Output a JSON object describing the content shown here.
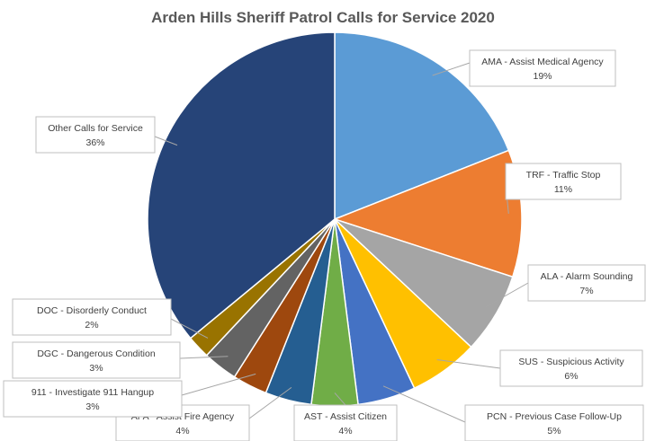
{
  "chart_data": {
    "type": "pie",
    "title": "Arden Hills Sheriff Patrol Calls for Service 2020",
    "slices": [
      {
        "label": "AMA - Assist Medical Agency",
        "value": 19,
        "pct_label": "19%",
        "color": "#5b9bd5"
      },
      {
        "label": "TRF - Traffic Stop",
        "value": 11,
        "pct_label": "11%",
        "color": "#ed7d31"
      },
      {
        "label": "ALA - Alarm Sounding",
        "value": 7,
        "pct_label": "7%",
        "color": "#a5a5a5"
      },
      {
        "label": "SUS - Suspicious Activity",
        "value": 6,
        "pct_label": "6%",
        "color": "#ffc000"
      },
      {
        "label": "PCN - Previous Case Follow-Up",
        "value": 5,
        "pct_label": "5%",
        "color": "#4472c4"
      },
      {
        "label": "AST - Assist Citizen",
        "value": 4,
        "pct_label": "4%",
        "color": "#70ad47"
      },
      {
        "label": "AFA - Assist Fire Agency",
        "value": 4,
        "pct_label": "4%",
        "color": "#255e91"
      },
      {
        "label": "911 - Investigate 911 Hangup",
        "value": 3,
        "pct_label": "3%",
        "color": "#9e480e"
      },
      {
        "label": "DGC - Dangerous Condition",
        "value": 3,
        "pct_label": "3%",
        "color": "#636363"
      },
      {
        "label": "DOC - Disorderly Conduct",
        "value": 2,
        "pct_label": "2%",
        "color": "#997300"
      },
      {
        "label": "Other Calls for Service",
        "value": 36,
        "pct_label": "36%",
        "color": "#264478"
      }
    ]
  }
}
